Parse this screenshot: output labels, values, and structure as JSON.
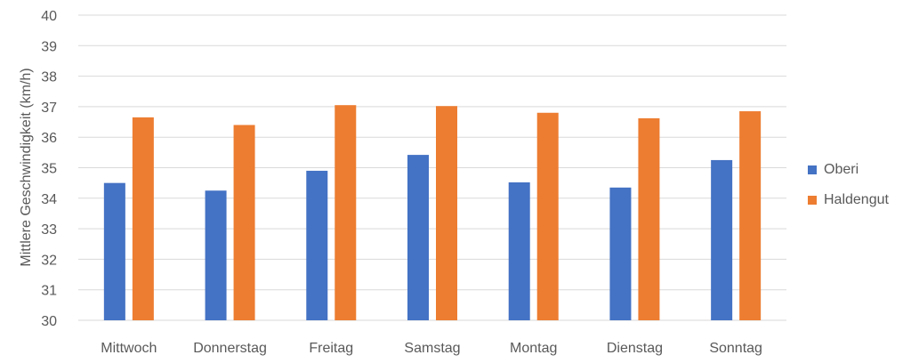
{
  "chart_data": {
    "type": "bar",
    "ylabel": "Mittlere Geschwindigkeit (km/h)",
    "ylim": [
      30,
      40
    ],
    "yticks": [
      30,
      31,
      32,
      33,
      34,
      35,
      36,
      37,
      38,
      39,
      40
    ],
    "grid": true,
    "legend_position": "right",
    "categories": [
      "Mittwoch",
      "Donnerstag",
      "Freitag",
      "Samstag",
      "Montag",
      "Dienstag",
      "Sonntag"
    ],
    "series": [
      {
        "name": "Oberi",
        "color": "#4472C4",
        "values": [
          34.5,
          34.25,
          34.9,
          35.42,
          34.52,
          34.35,
          35.25
        ]
      },
      {
        "name": "Haldengut",
        "color": "#ED7D31",
        "values": [
          36.65,
          36.4,
          37.05,
          37.02,
          36.8,
          36.62,
          36.85
        ]
      }
    ]
  }
}
